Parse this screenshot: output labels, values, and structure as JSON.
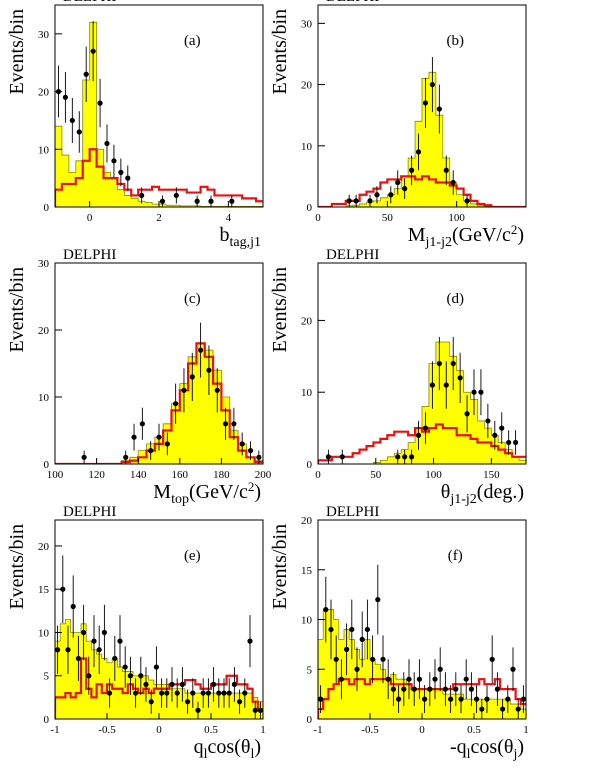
{
  "chart_data": [
    {
      "type": "histogram",
      "panel": "(a)",
      "experiment": "DELPHI",
      "xlabel": {
        "main": "b",
        "sub": "tag,j1",
        "tail": ""
      },
      "ylabel": "Events/bin",
      "xlim": [
        -1,
        5
      ],
      "ylim": [
        0,
        35
      ],
      "xticks": [
        0,
        2,
        4
      ],
      "yticks": [
        0,
        10,
        20,
        30
      ],
      "bin_edges": [
        -1.0,
        -0.8,
        -0.6,
        -0.4,
        -0.2,
        0.0,
        0.2,
        0.4,
        0.6,
        0.8,
        1.0,
        1.2,
        1.4,
        1.6,
        1.8,
        2.0,
        2.2,
        2.4,
        2.6,
        2.8,
        3.0,
        3.2,
        3.4,
        3.6,
        3.8,
        4.0,
        4.2,
        4.4,
        4.6,
        4.8,
        5.0
      ],
      "yellow": [
        14,
        9,
        6,
        8,
        22,
        32,
        10,
        6,
        5,
        3,
        2,
        1.5,
        1,
        0.8,
        0.5,
        0.5,
        0.3,
        0.3,
        0.2,
        0.2,
        0.2,
        0.1,
        0.1,
        0.1,
        0.1,
        0.1,
        0.1,
        0.1,
        0.1,
        0.1
      ],
      "red": [
        3,
        4,
        4,
        5,
        8,
        10,
        7,
        5,
        5,
        4,
        3,
        2,
        3,
        3,
        3.5,
        3,
        3,
        3,
        3,
        2.5,
        2.5,
        3.5,
        3,
        2,
        2,
        2,
        2,
        1.5,
        1.5,
        1
      ],
      "points": {
        "x": [
          -0.9,
          -0.7,
          -0.5,
          -0.3,
          -0.1,
          0.1,
          0.3,
          0.5,
          0.7,
          0.9,
          1.1,
          1.5,
          2.1,
          2.5,
          3.1,
          3.5,
          4.1
        ],
        "y": [
          20,
          19,
          15,
          13,
          23,
          27,
          18,
          11,
          8,
          6,
          5,
          2,
          1,
          2,
          1,
          1,
          1
        ],
        "err": [
          4.5,
          4.4,
          3.9,
          3.6,
          4.8,
          5.2,
          4.2,
          3.3,
          2.8,
          2.4,
          2.2,
          1.4,
          1,
          1.4,
          1,
          1,
          1
        ]
      }
    },
    {
      "type": "histogram",
      "panel": "(b)",
      "experiment": "DELPHI",
      "xlabel": {
        "main": "M",
        "sub": "j1-j2",
        "tail": "(GeV/c",
        "sup": "2",
        "close": ")"
      },
      "ylabel": "Events/bin",
      "xlim": [
        0,
        150
      ],
      "ylim": [
        0,
        33
      ],
      "xticks": [
        0,
        50,
        100
      ],
      "yticks": [
        0,
        10,
        20,
        30
      ],
      "bin_edges": [
        0,
        5,
        10,
        15,
        20,
        25,
        30,
        35,
        40,
        45,
        50,
        55,
        60,
        65,
        70,
        75,
        80,
        85,
        90,
        95,
        100,
        105,
        110,
        115,
        120,
        125,
        130,
        135,
        140,
        145,
        150
      ],
      "yellow": [
        0,
        0,
        0,
        0,
        0.2,
        0.3,
        0.5,
        0.8,
        1,
        1.5,
        2,
        3,
        5,
        8,
        14,
        21,
        22,
        15,
        8,
        4,
        2,
        1,
        0.5,
        0.2,
        0.1,
        0,
        0,
        0,
        0,
        0
      ],
      "red": [
        0,
        0,
        0.5,
        0.5,
        1,
        1,
        2,
        2.5,
        3,
        4,
        4.5,
        4.5,
        5,
        5,
        4.5,
        5,
        4.5,
        4,
        4,
        3.5,
        3,
        2,
        1,
        0.5,
        0.3,
        0,
        0,
        0,
        0,
        0
      ],
      "points": {
        "x": [
          22.5,
          27.5,
          37.5,
          42.5,
          52.5,
          57.5,
          62.5,
          67.5,
          72.5,
          77.5,
          82.5,
          87.5,
          92.5,
          97.5,
          107.5
        ],
        "y": [
          1,
          1,
          1,
          2,
          2,
          4,
          3,
          6,
          9,
          17,
          20,
          16,
          6,
          4,
          1
        ],
        "err": [
          1,
          1,
          1,
          1.4,
          1.4,
          2,
          1.7,
          2.4,
          3,
          4.1,
          4.5,
          4,
          2.4,
          2,
          1
        ]
      }
    },
    {
      "type": "histogram",
      "panel": "(c)",
      "experiment": "DELPHI",
      "xlabel": {
        "main": "M",
        "sub": "top",
        "tail": "(GeV/c",
        "sup": "2",
        "close": ")"
      },
      "ylabel": "Events/bin",
      "xlim": [
        100,
        200
      ],
      "ylim": [
        0,
        30
      ],
      "xticks": [
        100,
        120,
        140,
        160,
        180,
        200
      ],
      "yticks": [
        0,
        10,
        20,
        30
      ],
      "bin_edges": [
        100,
        104,
        108,
        112,
        116,
        120,
        124,
        128,
        132,
        136,
        140,
        144,
        148,
        152,
        156,
        160,
        164,
        168,
        172,
        176,
        180,
        184,
        188,
        192,
        196,
        200
      ],
      "yellow": [
        0,
        0,
        0,
        0,
        0,
        0,
        0,
        0,
        0.5,
        1,
        2,
        3,
        4,
        6,
        9,
        12,
        16,
        18,
        17,
        14,
        10,
        5,
        3,
        1,
        0.5
      ],
      "red": [
        0,
        0,
        0,
        0,
        0,
        0,
        0,
        0,
        0.3,
        0.5,
        1,
        2,
        3,
        5,
        8,
        11,
        15,
        18,
        16,
        12,
        8,
        4,
        2,
        1,
        0.3
      ],
      "points": {
        "x": [
          114,
          134,
          138,
          142,
          146,
          150,
          154,
          158,
          162,
          166,
          170,
          174,
          178,
          182,
          186,
          190,
          194,
          198
        ],
        "y": [
          1,
          1,
          4,
          6,
          2,
          4,
          3,
          9,
          11,
          13,
          17,
          14,
          11,
          6,
          6,
          3,
          2,
          1
        ],
        "err": [
          1,
          1,
          2,
          2.4,
          1.4,
          2,
          1.7,
          3,
          3.3,
          3.6,
          4.1,
          3.7,
          3.3,
          2.4,
          2.4,
          1.7,
          1.4,
          1
        ]
      }
    },
    {
      "type": "histogram",
      "panel": "(d)",
      "experiment": "DELPHI",
      "xlabel": {
        "main": "θ",
        "sub": "j1-j2",
        "tail": "(deg.)"
      },
      "ylabel": "Events/bin",
      "xlim": [
        0,
        180
      ],
      "ylim": [
        0,
        28
      ],
      "xticks": [
        0,
        50,
        100,
        150
      ],
      "yticks": [
        0,
        10,
        20
      ],
      "bin_edges": [
        0,
        6,
        12,
        18,
        24,
        30,
        36,
        42,
        48,
        54,
        60,
        66,
        72,
        78,
        84,
        90,
        96,
        102,
        108,
        114,
        120,
        126,
        132,
        138,
        144,
        150,
        156,
        162,
        168,
        174,
        180
      ],
      "yellow": [
        0,
        0,
        0,
        0,
        0,
        0,
        0,
        0,
        0.2,
        0.5,
        1,
        1.5,
        2,
        3,
        5,
        8,
        14,
        17,
        17,
        15,
        13,
        10,
        9,
        6,
        5,
        4,
        3,
        2,
        1,
        0.5
      ],
      "red": [
        0.5,
        0.5,
        1,
        1,
        1,
        1.5,
        2,
        2.5,
        3,
        3.5,
        4,
        4.5,
        4.5,
        4,
        5,
        4.5,
        5,
        5.5,
        5,
        5,
        4,
        4,
        3.5,
        3,
        3,
        2.5,
        2,
        1.5,
        1,
        1
      ],
      "points": {
        "x": [
          9,
          21,
          69,
          75,
          81,
          87,
          93,
          99,
          105,
          111,
          117,
          123,
          129,
          135,
          141,
          147,
          153,
          159,
          165,
          171
        ],
        "y": [
          1,
          1,
          1,
          1,
          1,
          4,
          5,
          11,
          14,
          11,
          14,
          12,
          7,
          10,
          10,
          6,
          4,
          5,
          3,
          3
        ],
        "err": [
          1,
          1,
          1,
          1,
          1,
          2,
          2.2,
          3.3,
          3.7,
          3.3,
          3.7,
          3.5,
          2.6,
          3.2,
          3.2,
          2.4,
          2,
          2.2,
          1.7,
          1.7
        ]
      }
    },
    {
      "type": "histogram",
      "panel": "(e)",
      "experiment": "DELPHI",
      "xlabel": {
        "main": "q",
        "sub": "l",
        "tail": "cos(θ",
        "sub2": "l",
        "close": ")"
      },
      "ylabel": "Events/bin",
      "xlim": [
        -1,
        1
      ],
      "ylim": [
        0,
        23
      ],
      "xticks": [
        -1,
        -0.5,
        0,
        0.5,
        1
      ],
      "yticks": [
        0,
        5,
        10,
        15,
        20
      ],
      "bin_edges": [
        -1.0,
        -0.95,
        -0.9,
        -0.85,
        -0.8,
        -0.75,
        -0.7,
        -0.65,
        -0.6,
        -0.55,
        -0.5,
        -0.45,
        -0.4,
        -0.35,
        -0.3,
        -0.25,
        -0.2,
        -0.15,
        -0.1,
        -0.05,
        0.0,
        0.05,
        0.1,
        0.15,
        0.2,
        0.25,
        0.3,
        0.35,
        0.4,
        0.45,
        0.5,
        0.55,
        0.6,
        0.65,
        0.7,
        0.75,
        0.8,
        0.85,
        0.9,
        0.95,
        1.0
      ],
      "yellow": [
        9,
        11,
        11.5,
        10,
        10,
        11,
        9,
        8,
        7.5,
        7,
        6.5,
        7,
        6,
        5.5,
        5.5,
        5,
        5,
        5,
        4.5,
        4,
        4,
        4,
        3.5,
        3.5,
        3.5,
        3,
        3,
        3,
        3,
        3,
        3,
        3,
        3,
        3,
        3,
        3,
        3,
        3,
        2.5,
        2
      ],
      "red": [
        2.5,
        2.5,
        3,
        2.5,
        3,
        7,
        3.5,
        2.5,
        4,
        3,
        4,
        3.5,
        3.5,
        3,
        4,
        3.5,
        3,
        3.5,
        3,
        3.5,
        3.5,
        3.5,
        4,
        4,
        4,
        4.5,
        4.5,
        4,
        3.5,
        3.5,
        4,
        4,
        4,
        5,
        5,
        4,
        4,
        3.5,
        2,
        1
      ],
      "points": {
        "x": [
          -0.975,
          -0.925,
          -0.875,
          -0.825,
          -0.775,
          -0.725,
          -0.675,
          -0.625,
          -0.575,
          -0.525,
          -0.475,
          -0.425,
          -0.375,
          -0.325,
          -0.275,
          -0.225,
          -0.175,
          -0.125,
          -0.075,
          -0.025,
          0.025,
          0.075,
          0.125,
          0.175,
          0.225,
          0.275,
          0.325,
          0.375,
          0.425,
          0.475,
          0.525,
          0.575,
          0.625,
          0.675,
          0.725,
          0.775,
          0.825,
          0.875,
          0.925,
          0.975
        ],
        "y": [
          8,
          15,
          8,
          13,
          7,
          10,
          5,
          9,
          8,
          10,
          3,
          7,
          9,
          6,
          5,
          3,
          5,
          4,
          2,
          6,
          3,
          3,
          4,
          3,
          4,
          2,
          3,
          1,
          3,
          3,
          4,
          3,
          3,
          3,
          4,
          2,
          3,
          9,
          1,
          1
        ],
        "err": [
          2.8,
          3.9,
          2.8,
          3.6,
          2.6,
          3.2,
          2.2,
          3,
          2.8,
          3.2,
          1.7,
          2.6,
          3,
          2.4,
          2.2,
          1.7,
          2.2,
          2,
          1.4,
          2.4,
          1.7,
          1.7,
          2,
          1.7,
          2,
          1.4,
          1.7,
          1,
          1.7,
          1.7,
          2,
          1.7,
          1.7,
          1.7,
          2,
          1.4,
          1.7,
          3,
          1,
          1
        ]
      }
    },
    {
      "type": "histogram",
      "panel": "(f)",
      "experiment": "DELPHI",
      "xlabel": {
        "main": "-q",
        "sub": "l",
        "tail": "cos(θ",
        "sub2": "j",
        "close": ")"
      },
      "ylabel": "Events/bin",
      "xlim": [
        -1,
        1
      ],
      "ylim": [
        0,
        20
      ],
      "xticks": [
        -1,
        -0.5,
        0,
        0.5,
        1
      ],
      "yticks": [
        0,
        5,
        10,
        15,
        20
      ],
      "bin_edges": [
        -1.0,
        -0.95,
        -0.9,
        -0.85,
        -0.8,
        -0.75,
        -0.7,
        -0.65,
        -0.6,
        -0.55,
        -0.5,
        -0.45,
        -0.4,
        -0.35,
        -0.3,
        -0.25,
        -0.2,
        -0.15,
        -0.1,
        -0.05,
        0.0,
        0.05,
        0.1,
        0.15,
        0.2,
        0.25,
        0.3,
        0.35,
        0.4,
        0.45,
        0.5,
        0.55,
        0.6,
        0.65,
        0.7,
        0.75,
        0.8,
        0.85,
        0.9,
        0.95,
        1.0
      ],
      "yellow": [
        8,
        11,
        11,
        10,
        8,
        9,
        8,
        7,
        6,
        8,
        6,
        5.5,
        5,
        4,
        4.5,
        4,
        4,
        3.5,
        3,
        3,
        3,
        3,
        3,
        3,
        2.5,
        2.5,
        2.5,
        2.5,
        2,
        2,
        2,
        2,
        2,
        2,
        2,
        2,
        2,
        1.5,
        1.5,
        1
      ],
      "red": [
        1,
        2,
        3,
        3.5,
        4,
        4,
        3.5,
        4,
        4,
        3.5,
        4,
        4,
        4,
        4,
        3.5,
        3.5,
        3.5,
        3.5,
        3,
        3,
        3,
        3,
        3,
        3,
        3,
        3,
        3.5,
        3.5,
        3.5,
        3.5,
        3.5,
        4,
        3.5,
        3.5,
        4,
        3,
        3,
        3,
        2,
        1.5
      ],
      "points": {
        "x": [
          -0.975,
          -0.925,
          -0.875,
          -0.825,
          -0.775,
          -0.725,
          -0.675,
          -0.625,
          -0.575,
          -0.525,
          -0.475,
          -0.425,
          -0.375,
          -0.325,
          -0.275,
          -0.225,
          -0.175,
          -0.125,
          -0.075,
          -0.025,
          0.025,
          0.075,
          0.125,
          0.175,
          0.225,
          0.275,
          0.325,
          0.375,
          0.425,
          0.475,
          0.525,
          0.575,
          0.625,
          0.675,
          0.725,
          0.775,
          0.825,
          0.875,
          0.925,
          0.975
        ],
        "y": [
          2,
          11,
          9,
          6,
          4,
          7,
          9,
          5,
          8,
          9,
          6,
          12,
          6,
          4,
          3,
          2,
          3,
          4,
          3,
          4,
          2,
          3,
          4,
          5,
          3,
          2,
          3,
          2,
          4,
          3,
          2,
          1,
          2,
          6,
          3,
          1,
          2,
          5,
          1,
          2
        ],
        "err": [
          1.4,
          3.3,
          3,
          2.4,
          2,
          2.6,
          3,
          2.2,
          2.8,
          3,
          2.4,
          3.5,
          2.4,
          2,
          1.7,
          1.4,
          1.7,
          2,
          1.7,
          2,
          1.4,
          1.7,
          2,
          2.2,
          1.7,
          1.4,
          1.7,
          1.4,
          2,
          1.7,
          1.4,
          1,
          1.4,
          2.4,
          1.7,
          1,
          1.4,
          2.2,
          1,
          1.4
        ]
      }
    }
  ],
  "colors": {
    "fill": "#ffff00",
    "outline": "#8a8a00",
    "red": "#e81010",
    "points": "#000000"
  }
}
